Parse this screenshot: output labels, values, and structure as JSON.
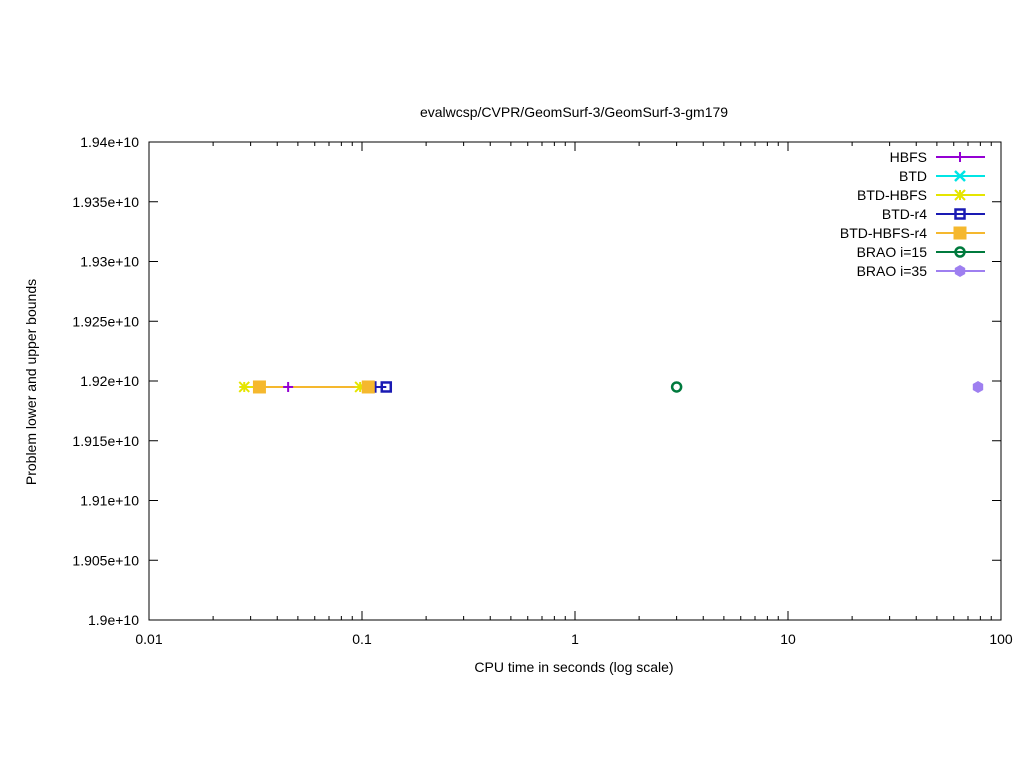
{
  "chart_data": {
    "type": "scatter",
    "title": "evalwcsp/CVPR/GeomSurf-3/GeomSurf-3-gm179",
    "xlabel": "CPU time in seconds (log scale)",
    "ylabel": "Problem lower and upper bounds",
    "x_scale": "log",
    "xlim": [
      0.01,
      100
    ],
    "ylim": [
      19000000000,
      19400000000
    ],
    "x_ticks": [
      {
        "value": 0.01,
        "label": "0.01"
      },
      {
        "value": 0.1,
        "label": "0.1"
      },
      {
        "value": 1,
        "label": "1"
      },
      {
        "value": 10,
        "label": "10"
      },
      {
        "value": 100,
        "label": "100"
      }
    ],
    "y_ticks": [
      {
        "value": 19000000000,
        "label": "1.9e+10"
      },
      {
        "value": 19050000000,
        "label": "1.905e+10"
      },
      {
        "value": 19100000000,
        "label": "1.91e+10"
      },
      {
        "value": 19150000000,
        "label": "1.915e+10"
      },
      {
        "value": 19200000000,
        "label": "1.92e+10"
      },
      {
        "value": 19250000000,
        "label": "1.925e+10"
      },
      {
        "value": 19300000000,
        "label": "1.93e+10"
      },
      {
        "value": 19350000000,
        "label": "1.935e+10"
      },
      {
        "value": 19400000000,
        "label": "1.94e+10"
      }
    ],
    "grid": false,
    "legend_position": "top-right",
    "series": [
      {
        "name": "HBFS",
        "color": "#9400d3",
        "marker": "plus",
        "points": [
          [
            0.033,
            19195000000
          ],
          [
            0.045,
            19195000000
          ]
        ]
      },
      {
        "name": "BTD",
        "color": "#00e5e5",
        "marker": "cross",
        "points": []
      },
      {
        "name": "BTD-HBFS",
        "color": "#e5e500",
        "marker": "star",
        "points": [
          [
            0.028,
            19195000000
          ],
          [
            0.098,
            19195000000
          ]
        ]
      },
      {
        "name": "BTD-r4",
        "color": "#1a1ab3",
        "marker": "open-square",
        "points": [
          [
            0.11,
            19195000000
          ],
          [
            0.13,
            19195000000
          ]
        ]
      },
      {
        "name": "BTD-HBFS-r4",
        "color": "#f5b82e",
        "marker": "filled-square",
        "points": [
          [
            0.033,
            19195000000
          ],
          [
            0.107,
            19195000000
          ]
        ]
      },
      {
        "name": "BRAO i=15",
        "color": "#007a3d",
        "marker": "open-circle",
        "points": [
          [
            3.0,
            19195000000
          ]
        ]
      },
      {
        "name": "BRAO i=35",
        "color": "#9e7ff0",
        "marker": "filled-hexagon",
        "points": [
          [
            78,
            19195000000
          ]
        ]
      }
    ]
  }
}
